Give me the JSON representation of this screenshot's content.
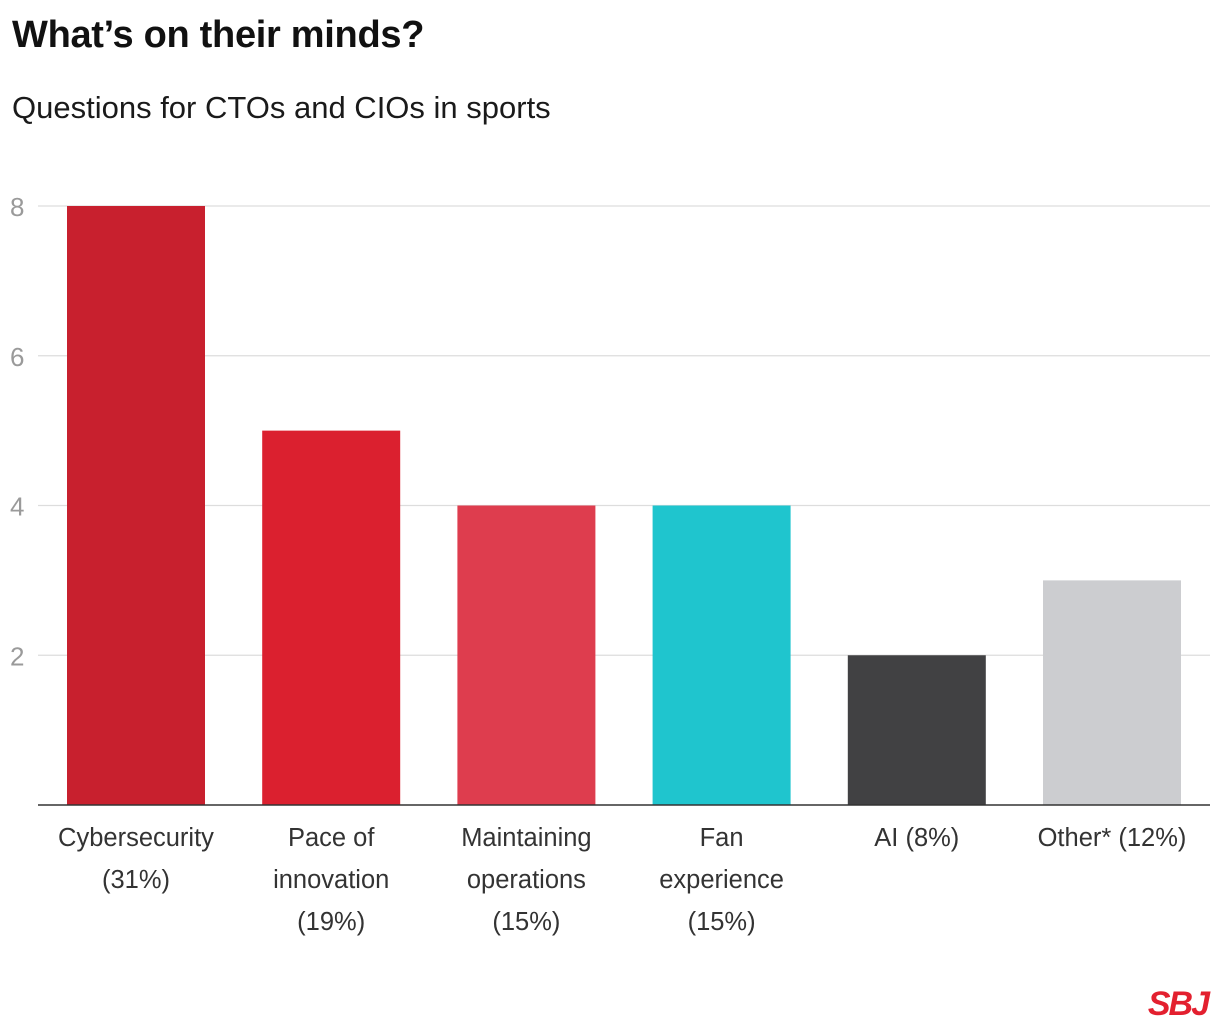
{
  "title": "What’s on their minds?",
  "subtitle": "Questions for CTOs and CIOs in sports",
  "logo_text": "SBJ",
  "chart_data": {
    "type": "bar",
    "title": "What’s on their minds?",
    "subtitle": "Questions for CTOs and CIOs in sports",
    "xlabel": "",
    "ylabel": "",
    "ylim": [
      0,
      8
    ],
    "yticks": [
      2,
      4,
      6,
      8
    ],
    "grid": true,
    "categories": [
      [
        "Cybersecurity",
        "(31%)"
      ],
      [
        "Pace of",
        "innovation",
        "(19%)"
      ],
      [
        "Maintaining",
        "operations",
        "(15%)"
      ],
      [
        "Fan",
        "experience",
        "(15%)"
      ],
      [
        "AI (8%)"
      ],
      [
        "Other* (12%)"
      ]
    ],
    "values": [
      8,
      5,
      4,
      4,
      2,
      3
    ],
    "colors": [
      "#c8202e",
      "#db202f",
      "#de3d4e",
      "#1fc5ce",
      "#414143",
      "#cccdd0"
    ]
  }
}
